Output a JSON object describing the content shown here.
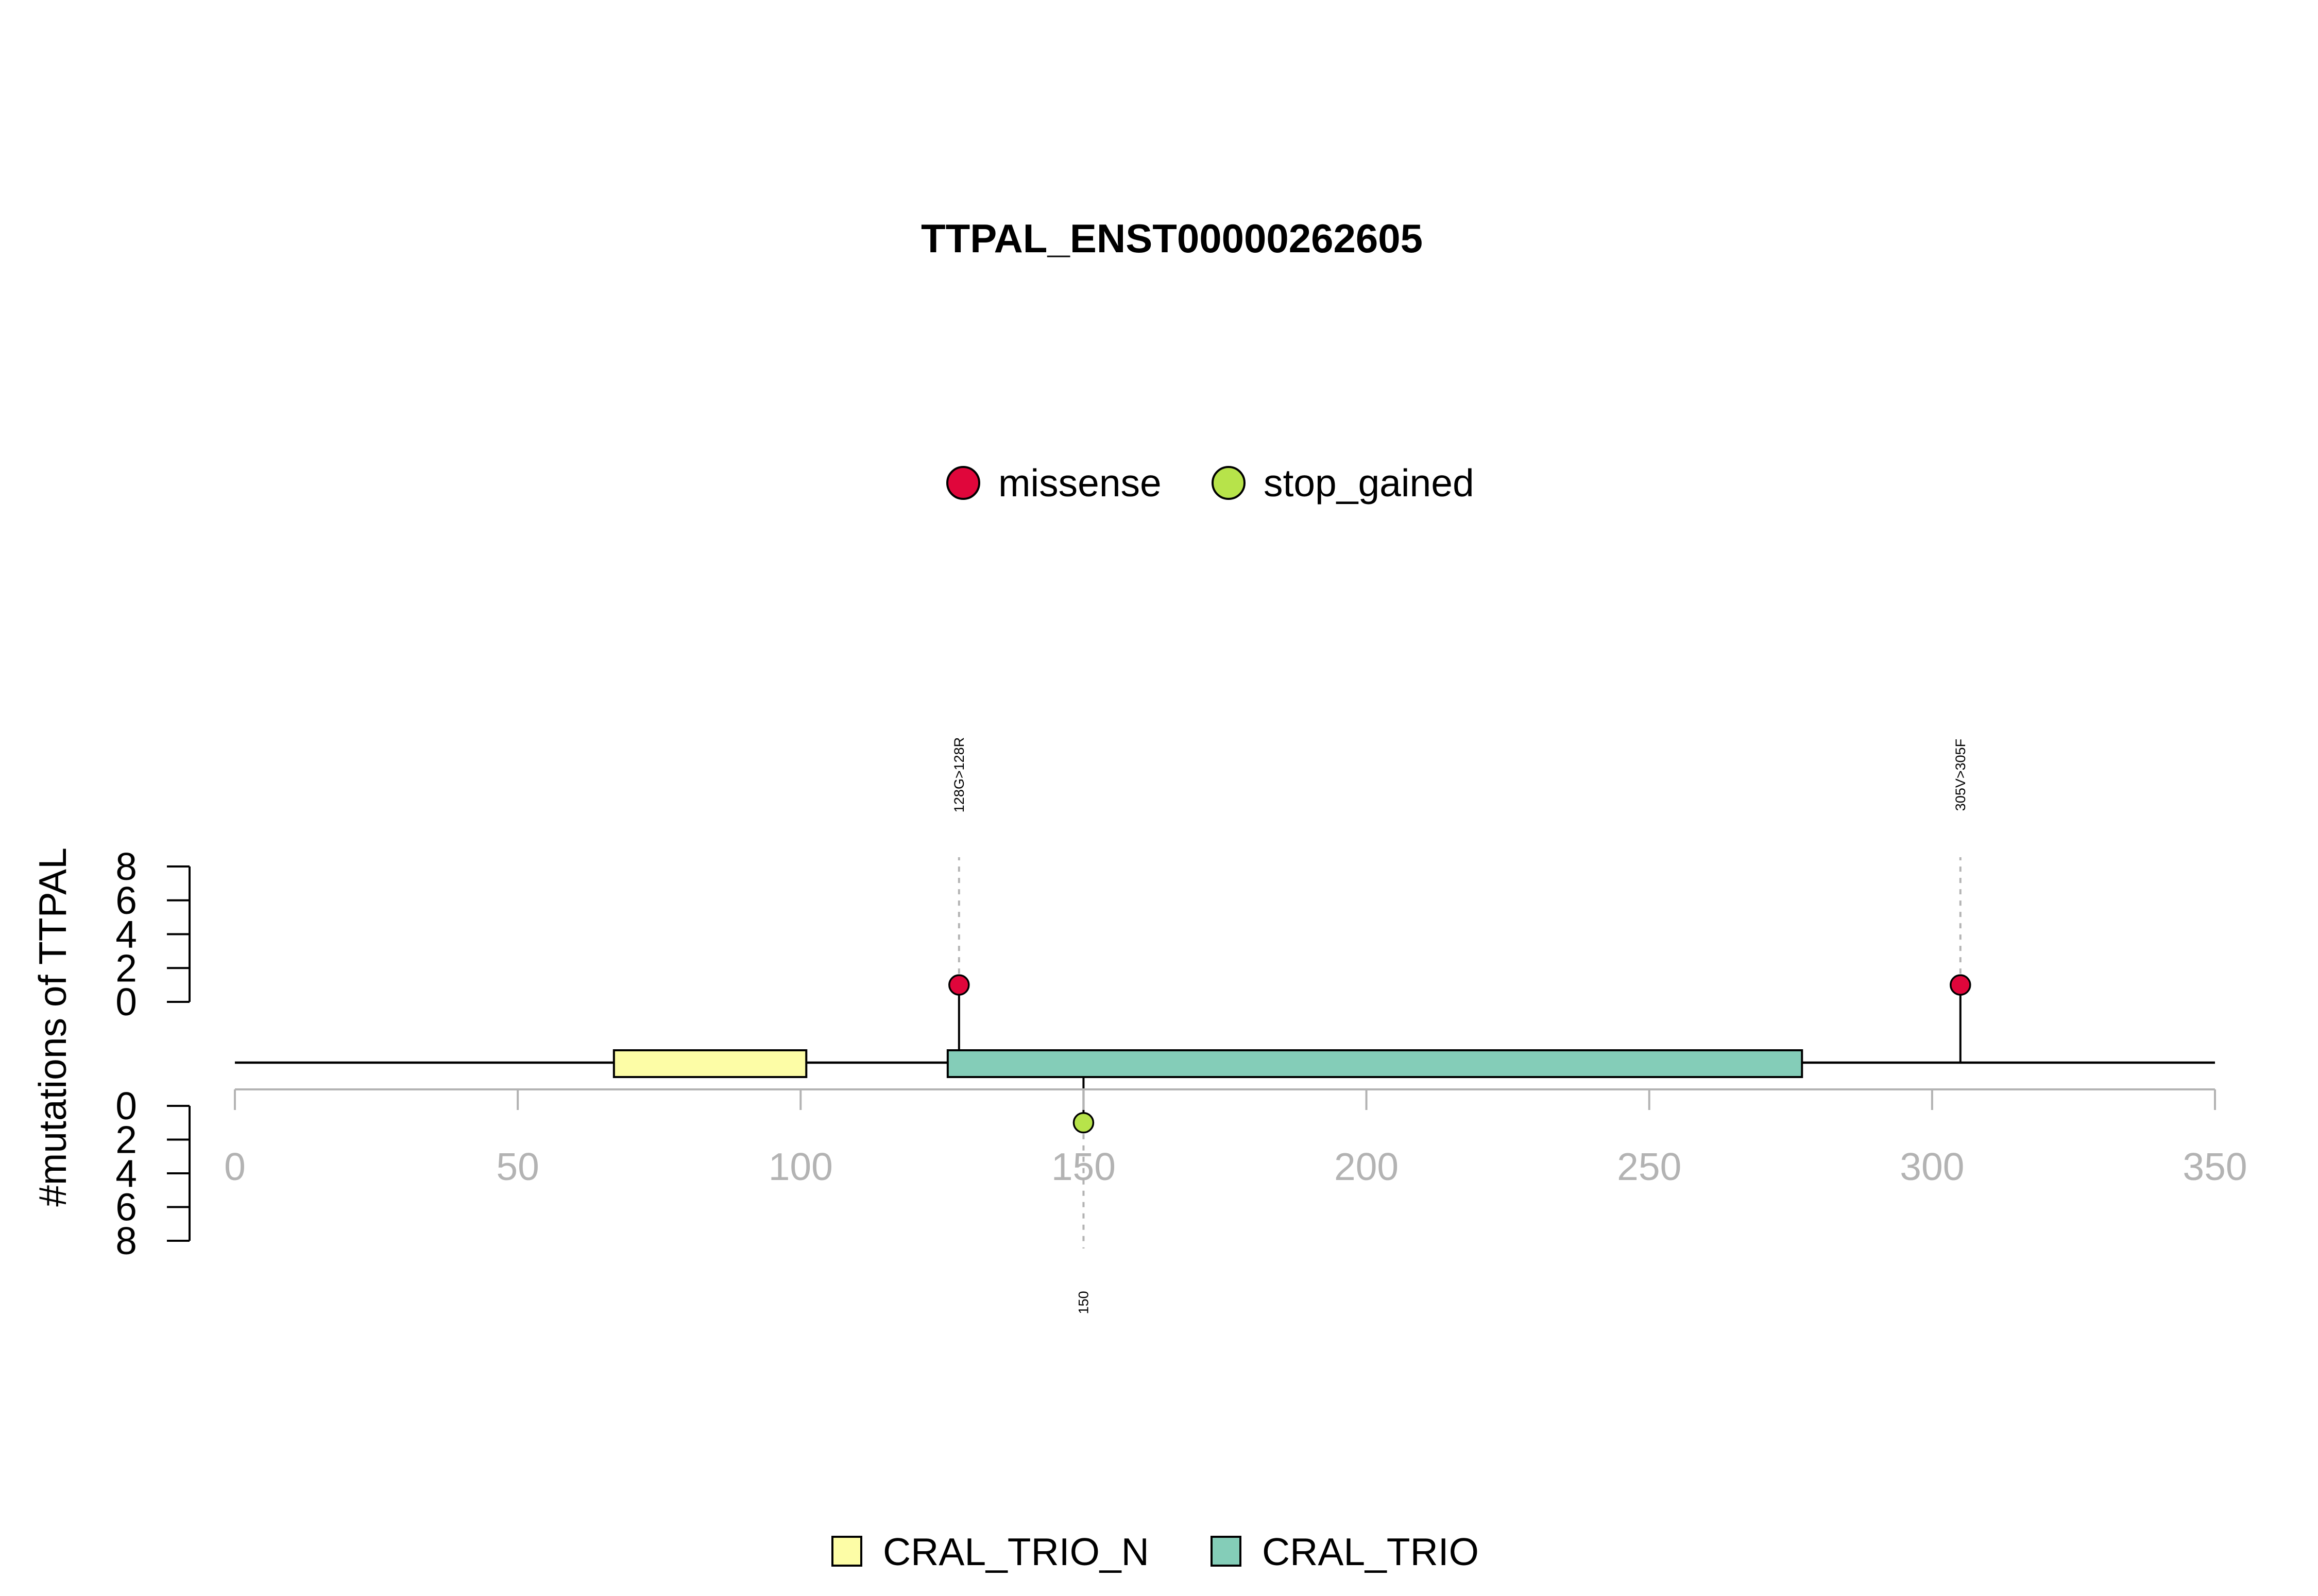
{
  "chart_data": {
    "type": "lollipop",
    "title": "TTPAL_ENST00000262605",
    "ylabel": "#mutations of TTPAL",
    "xlim": [
      0,
      350
    ],
    "x_ticks": [
      0,
      50,
      100,
      150,
      200,
      250,
      300,
      350
    ],
    "y_ticks_top": [
      0,
      2,
      4,
      6,
      8
    ],
    "y_ticks_bottom": [
      0,
      2,
      4,
      6,
      8
    ],
    "ylim": [
      0,
      8
    ],
    "legend_mutations": [
      {
        "label": "missense",
        "color": "#e0063b"
      },
      {
        "label": "stop_gained",
        "color": "#b7e34a"
      }
    ],
    "legend_domains": [
      {
        "label": "CRAL_TRIO_N",
        "color": "#fdfda6"
      },
      {
        "label": "CRAL_TRIO",
        "color": "#84cdb8"
      }
    ],
    "domains": [
      {
        "name": "CRAL_TRIO_N",
        "start": 67,
        "end": 101,
        "color": "#fdfda6"
      },
      {
        "name": "CRAL_TRIO",
        "start": 126,
        "end": 277,
        "color": "#84cdb8"
      }
    ],
    "mutations_top": [
      {
        "position": 128,
        "count": 1,
        "type": "missense",
        "color": "#e0063b",
        "label": "128G>128R"
      },
      {
        "position": 305,
        "count": 1,
        "type": "missense",
        "color": "#e0063b",
        "label": "305V>305F"
      }
    ],
    "mutations_bottom": [
      {
        "position": 150,
        "count": 1,
        "type": "stop_gained",
        "color": "#b7e34a",
        "label": "150"
      }
    ]
  }
}
